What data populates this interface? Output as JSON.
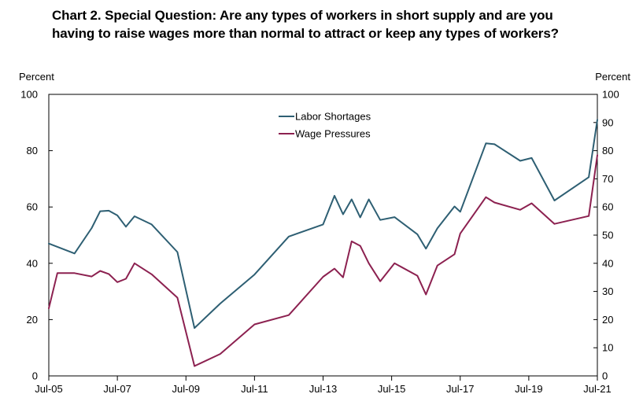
{
  "title": {
    "line1": "Chart 2. Special Question: Are any types of workers in short supply and are you",
    "line2": "having to raise wages more than normal to attract or keep any types of workers?"
  },
  "chart_data": {
    "type": "line",
    "left_axis_label": "Percent",
    "right_axis_label": "Percent",
    "left_ylim": [
      0,
      100
    ],
    "left_ticks": [
      0,
      20,
      40,
      60,
      80,
      100
    ],
    "right_ylim": [
      0,
      100
    ],
    "right_ticks": [
      0,
      10,
      20,
      30,
      40,
      50,
      60,
      70,
      80,
      90,
      100
    ],
    "xlim": [
      "2005-07",
      "2021-07"
    ],
    "x_ticks": [
      {
        "label": "Jul-05",
        "date": "2005-07"
      },
      {
        "label": "Jul-07",
        "date": "2007-07"
      },
      {
        "label": "Jul-09",
        "date": "2009-07"
      },
      {
        "label": "Jul-11",
        "date": "2011-07"
      },
      {
        "label": "Jul-13",
        "date": "2013-07"
      },
      {
        "label": "Jul-15",
        "date": "2015-07"
      },
      {
        "label": "Jul-17",
        "date": "2017-07"
      },
      {
        "label": "Jul-19",
        "date": "2019-07"
      },
      {
        "label": "Jul-21",
        "date": "2021-07"
      }
    ],
    "grid": false,
    "legend_placement": "top-center",
    "series": [
      {
        "name": "Labor Shortages",
        "axis": "left",
        "color": "#2e5f73",
        "points": [
          [
            "2005-07",
            47
          ],
          [
            "2006-04",
            43.5
          ],
          [
            "2006-10",
            52.5
          ],
          [
            "2007-01",
            58.5
          ],
          [
            "2007-04",
            58.7
          ],
          [
            "2007-07",
            57
          ],
          [
            "2007-10",
            53
          ],
          [
            "2008-01",
            56.7
          ],
          [
            "2008-07",
            53.8
          ],
          [
            "2009-04",
            44
          ],
          [
            "2009-10",
            17
          ],
          [
            "2010-07",
            25.7
          ],
          [
            "2011-07",
            36
          ],
          [
            "2012-07",
            49.5
          ],
          [
            "2013-07",
            53.8
          ],
          [
            "2013-11",
            64
          ],
          [
            "2014-02",
            57.4
          ],
          [
            "2014-05",
            62.7
          ],
          [
            "2014-08",
            56.3
          ],
          [
            "2014-11",
            62.7
          ],
          [
            "2015-03",
            55.4
          ],
          [
            "2015-08",
            56.4
          ],
          [
            "2016-04",
            50.3
          ],
          [
            "2016-07",
            45.2
          ],
          [
            "2016-11",
            52.4
          ],
          [
            "2017-05",
            60.2
          ],
          [
            "2017-07",
            58.3
          ],
          [
            "2018-04",
            82.6
          ],
          [
            "2018-07",
            82.3
          ],
          [
            "2019-04",
            76.4
          ],
          [
            "2019-08",
            77.4
          ],
          [
            "2020-04",
            62.3
          ],
          [
            "2021-04",
            70.6
          ],
          [
            "2021-07",
            91
          ]
        ]
      },
      {
        "name": "Wage Pressures",
        "axis": "right",
        "color": "#8c2150",
        "points": [
          [
            "2005-07",
            24
          ],
          [
            "2005-10",
            36.5
          ],
          [
            "2006-04",
            36.5
          ],
          [
            "2006-10",
            35.3
          ],
          [
            "2007-01",
            37.3
          ],
          [
            "2007-04",
            36.2
          ],
          [
            "2007-07",
            33.3
          ],
          [
            "2007-10",
            34.5
          ],
          [
            "2008-01",
            40
          ],
          [
            "2008-07",
            36.1
          ],
          [
            "2009-04",
            27.8
          ],
          [
            "2009-10",
            3.5
          ],
          [
            "2010-07",
            7.8
          ],
          [
            "2011-07",
            18.3
          ],
          [
            "2012-07",
            21.6
          ],
          [
            "2013-07",
            35.2
          ],
          [
            "2013-11",
            38.1
          ],
          [
            "2014-02",
            35
          ],
          [
            "2014-05",
            47.8
          ],
          [
            "2014-08",
            46.2
          ],
          [
            "2014-11",
            40
          ],
          [
            "2015-03",
            33.6
          ],
          [
            "2015-08",
            40
          ],
          [
            "2016-04",
            35.6
          ],
          [
            "2016-07",
            28.9
          ],
          [
            "2016-11",
            39.2
          ],
          [
            "2017-05",
            43.2
          ],
          [
            "2017-07",
            50.6
          ],
          [
            "2018-04",
            63.5
          ],
          [
            "2018-07",
            61.6
          ],
          [
            "2019-04",
            59
          ],
          [
            "2019-08",
            61.3
          ],
          [
            "2020-04",
            54
          ],
          [
            "2021-04",
            56.8
          ],
          [
            "2021-07",
            78.4
          ]
        ]
      }
    ]
  }
}
